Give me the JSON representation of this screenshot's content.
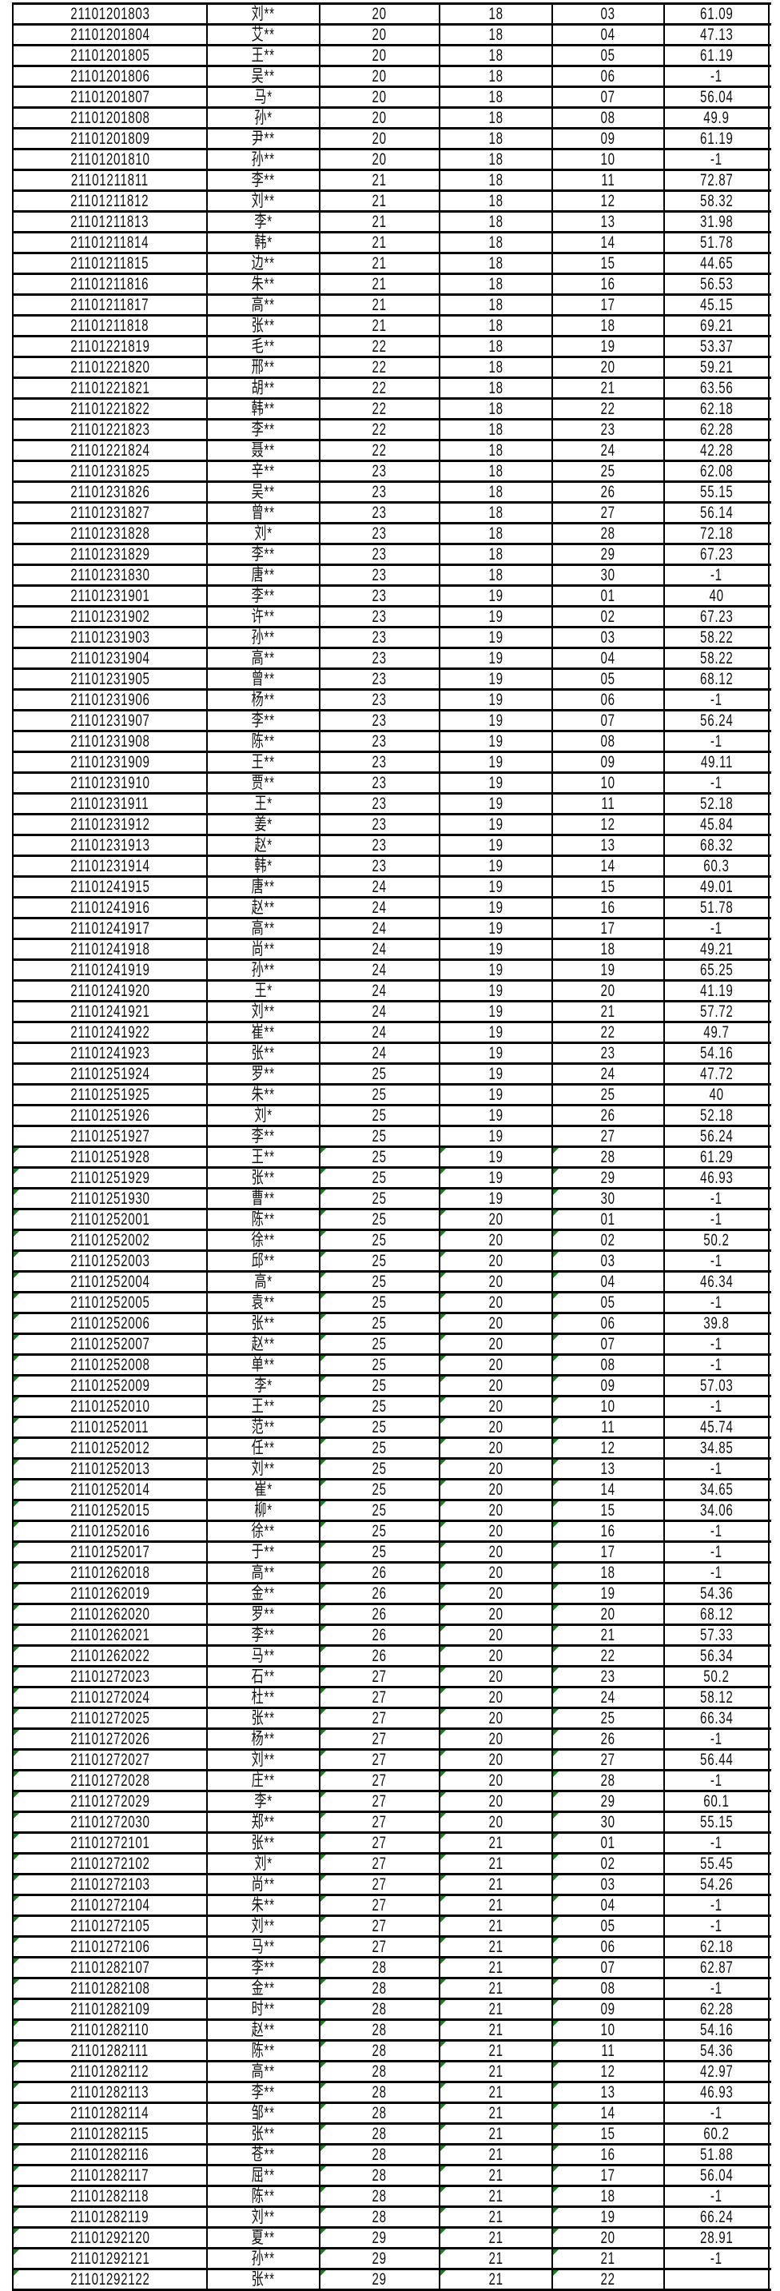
{
  "warning_marker_color": "#1e7b1e",
  "rows": [
    {
      "c": [
        "21101201803",
        "刘**",
        "20",
        "18",
        "03",
        "61.09"
      ]
    },
    {
      "c": [
        "21101201804",
        "艾**",
        "20",
        "18",
        "04",
        "47.13"
      ]
    },
    {
      "c": [
        "21101201805",
        "王**",
        "20",
        "18",
        "05",
        "61.19"
      ]
    },
    {
      "c": [
        "21101201806",
        "吴**",
        "20",
        "18",
        "06",
        "-1"
      ]
    },
    {
      "c": [
        "21101201807",
        "马*",
        "20",
        "18",
        "07",
        "56.04"
      ]
    },
    {
      "c": [
        "21101201808",
        "孙*",
        "20",
        "18",
        "08",
        "49.9"
      ]
    },
    {
      "c": [
        "21101201809",
        "尹**",
        "20",
        "18",
        "09",
        "61.19"
      ]
    },
    {
      "c": [
        "21101201810",
        "孙**",
        "20",
        "18",
        "10",
        "-1"
      ]
    },
    {
      "c": [
        "21101211811",
        "李**",
        "21",
        "18",
        "11",
        "72.87"
      ]
    },
    {
      "c": [
        "21101211812",
        "刘**",
        "21",
        "18",
        "12",
        "58.32"
      ]
    },
    {
      "c": [
        "21101211813",
        "李*",
        "21",
        "18",
        "13",
        "31.98"
      ]
    },
    {
      "c": [
        "21101211814",
        "韩*",
        "21",
        "18",
        "14",
        "51.78"
      ]
    },
    {
      "c": [
        "21101211815",
        "边**",
        "21",
        "18",
        "15",
        "44.65"
      ]
    },
    {
      "c": [
        "21101211816",
        "朱**",
        "21",
        "18",
        "16",
        "56.53"
      ]
    },
    {
      "c": [
        "21101211817",
        "高**",
        "21",
        "18",
        "17",
        "45.15"
      ]
    },
    {
      "c": [
        "21101211818",
        "张**",
        "21",
        "18",
        "18",
        "69.21"
      ]
    },
    {
      "c": [
        "21101221819",
        "毛**",
        "22",
        "18",
        "19",
        "53.37"
      ]
    },
    {
      "c": [
        "21101221820",
        "邢**",
        "22",
        "18",
        "20",
        "59.21"
      ]
    },
    {
      "c": [
        "21101221821",
        "胡**",
        "22",
        "18",
        "21",
        "63.56"
      ]
    },
    {
      "c": [
        "21101221822",
        "韩**",
        "22",
        "18",
        "22",
        "62.18"
      ]
    },
    {
      "c": [
        "21101221823",
        "李**",
        "22",
        "18",
        "23",
        "62.28"
      ]
    },
    {
      "c": [
        "21101221824",
        "聂**",
        "22",
        "18",
        "24",
        "42.28"
      ]
    },
    {
      "c": [
        "21101231825",
        "辛**",
        "23",
        "18",
        "25",
        "62.08"
      ]
    },
    {
      "c": [
        "21101231826",
        "吴**",
        "23",
        "18",
        "26",
        "55.15"
      ]
    },
    {
      "c": [
        "21101231827",
        "曾**",
        "23",
        "18",
        "27",
        "56.14"
      ]
    },
    {
      "c": [
        "21101231828",
        "刘*",
        "23",
        "18",
        "28",
        "72.18"
      ]
    },
    {
      "c": [
        "21101231829",
        "李**",
        "23",
        "18",
        "29",
        "67.23"
      ]
    },
    {
      "c": [
        "21101231830",
        "唐**",
        "23",
        "18",
        "30",
        "-1"
      ]
    },
    {
      "c": [
        "21101231901",
        "李**",
        "23",
        "19",
        "01",
        "40"
      ]
    },
    {
      "c": [
        "21101231902",
        "许**",
        "23",
        "19",
        "02",
        "67.23"
      ]
    },
    {
      "c": [
        "21101231903",
        "孙**",
        "23",
        "19",
        "03",
        "58.22"
      ]
    },
    {
      "c": [
        "21101231904",
        "高**",
        "23",
        "19",
        "04",
        "58.22"
      ]
    },
    {
      "c": [
        "21101231905",
        "曾**",
        "23",
        "19",
        "05",
        "68.12"
      ]
    },
    {
      "c": [
        "21101231906",
        "杨**",
        "23",
        "19",
        "06",
        "-1"
      ]
    },
    {
      "c": [
        "21101231907",
        "李**",
        "23",
        "19",
        "07",
        "56.24"
      ]
    },
    {
      "c": [
        "21101231908",
        "陈**",
        "23",
        "19",
        "08",
        "-1"
      ]
    },
    {
      "c": [
        "21101231909",
        "王**",
        "23",
        "19",
        "09",
        "49.11"
      ]
    },
    {
      "c": [
        "21101231910",
        "贾**",
        "23",
        "19",
        "10",
        "-1"
      ]
    },
    {
      "c": [
        "21101231911",
        "王*",
        "23",
        "19",
        "11",
        "52.18"
      ]
    },
    {
      "c": [
        "21101231912",
        "姜*",
        "23",
        "19",
        "12",
        "45.84"
      ]
    },
    {
      "c": [
        "21101231913",
        "赵*",
        "23",
        "19",
        "13",
        "68.32"
      ]
    },
    {
      "c": [
        "21101231914",
        "韩*",
        "23",
        "19",
        "14",
        "60.3"
      ]
    },
    {
      "c": [
        "21101241915",
        "唐**",
        "24",
        "19",
        "15",
        "49.01"
      ]
    },
    {
      "c": [
        "21101241916",
        "赵**",
        "24",
        "19",
        "16",
        "51.78"
      ]
    },
    {
      "c": [
        "21101241917",
        "高**",
        "24",
        "19",
        "17",
        "-1"
      ]
    },
    {
      "c": [
        "21101241918",
        "尚**",
        "24",
        "19",
        "18",
        "49.21"
      ]
    },
    {
      "c": [
        "21101241919",
        "孙**",
        "24",
        "19",
        "19",
        "65.25"
      ]
    },
    {
      "c": [
        "21101241920",
        "王*",
        "24",
        "19",
        "20",
        "41.19"
      ]
    },
    {
      "c": [
        "21101241921",
        "刘**",
        "24",
        "19",
        "21",
        "57.72"
      ]
    },
    {
      "c": [
        "21101241922",
        "崔**",
        "24",
        "19",
        "22",
        "49.7"
      ]
    },
    {
      "c": [
        "21101241923",
        "张**",
        "24",
        "19",
        "23",
        "54.16"
      ]
    },
    {
      "c": [
        "21101251924",
        "罗**",
        "25",
        "19",
        "24",
        "47.72"
      ]
    },
    {
      "c": [
        "21101251925",
        "朱**",
        "25",
        "19",
        "25",
        "40"
      ]
    },
    {
      "c": [
        "21101251926",
        "刘*",
        "25",
        "19",
        "26",
        "52.18"
      ]
    },
    {
      "c": [
        "21101251927",
        "李**",
        "25",
        "19",
        "27",
        "56.24"
      ]
    },
    {
      "c": [
        "21101251928",
        "王**",
        "25",
        "19",
        "28",
        "61.29"
      ],
      "warn": true
    },
    {
      "c": [
        "21101251929",
        "张**",
        "25",
        "19",
        "29",
        "46.93"
      ],
      "warn": true
    },
    {
      "c": [
        "21101251930",
        "曹**",
        "25",
        "19",
        "30",
        "-1"
      ],
      "warn": true
    },
    {
      "c": [
        "21101252001",
        "陈**",
        "25",
        "20",
        "01",
        "-1"
      ],
      "warn": true
    },
    {
      "c": [
        "21101252002",
        "徐**",
        "25",
        "20",
        "02",
        "50.2"
      ],
      "warn": true
    },
    {
      "c": [
        "21101252003",
        "邱**",
        "25",
        "20",
        "03",
        "-1"
      ],
      "warn": true
    },
    {
      "c": [
        "21101252004",
        "高*",
        "25",
        "20",
        "04",
        "46.34"
      ],
      "warn": true
    },
    {
      "c": [
        "21101252005",
        "袁**",
        "25",
        "20",
        "05",
        "-1"
      ],
      "warn": true
    },
    {
      "c": [
        "21101252006",
        "张**",
        "25",
        "20",
        "06",
        "39.8"
      ],
      "warn": true
    },
    {
      "c": [
        "21101252007",
        "赵**",
        "25",
        "20",
        "07",
        "-1"
      ],
      "warn": true
    },
    {
      "c": [
        "21101252008",
        "单**",
        "25",
        "20",
        "08",
        "-1"
      ],
      "warn": true
    },
    {
      "c": [
        "21101252009",
        "李*",
        "25",
        "20",
        "09",
        "57.03"
      ],
      "warn": true
    },
    {
      "c": [
        "21101252010",
        "王**",
        "25",
        "20",
        "10",
        "-1"
      ],
      "warn": true
    },
    {
      "c": [
        "21101252011",
        "范**",
        "25",
        "20",
        "11",
        "45.74"
      ],
      "warn": true
    },
    {
      "c": [
        "21101252012",
        "任**",
        "25",
        "20",
        "12",
        "34.85"
      ],
      "warn": true
    },
    {
      "c": [
        "21101252013",
        "刘**",
        "25",
        "20",
        "13",
        "-1"
      ],
      "warn": true
    },
    {
      "c": [
        "21101252014",
        "崔*",
        "25",
        "20",
        "14",
        "34.65"
      ],
      "warn": true
    },
    {
      "c": [
        "21101252015",
        "柳*",
        "25",
        "20",
        "15",
        "34.06"
      ],
      "warn": true
    },
    {
      "c": [
        "21101252016",
        "徐**",
        "25",
        "20",
        "16",
        "-1"
      ],
      "warn": true
    },
    {
      "c": [
        "21101252017",
        "于**",
        "25",
        "20",
        "17",
        "-1"
      ],
      "warn": true
    },
    {
      "c": [
        "21101262018",
        "高**",
        "26",
        "20",
        "18",
        "-1"
      ],
      "warn": true
    },
    {
      "c": [
        "21101262019",
        "金**",
        "26",
        "20",
        "19",
        "54.36"
      ],
      "warn": true
    },
    {
      "c": [
        "21101262020",
        "罗**",
        "26",
        "20",
        "20",
        "68.12"
      ],
      "warn": true
    },
    {
      "c": [
        "21101262021",
        "李**",
        "26",
        "20",
        "21",
        "57.33"
      ],
      "warn": true
    },
    {
      "c": [
        "21101262022",
        "马**",
        "26",
        "20",
        "22",
        "56.34"
      ],
      "warn": true
    },
    {
      "c": [
        "21101272023",
        "石**",
        "27",
        "20",
        "23",
        "50.2"
      ],
      "warn": true
    },
    {
      "c": [
        "21101272024",
        "杜**",
        "27",
        "20",
        "24",
        "58.12"
      ],
      "warn": true
    },
    {
      "c": [
        "21101272025",
        "张**",
        "27",
        "20",
        "25",
        "66.34"
      ],
      "warn": true
    },
    {
      "c": [
        "21101272026",
        "杨**",
        "27",
        "20",
        "26",
        "-1"
      ],
      "warn": true
    },
    {
      "c": [
        "21101272027",
        "刘**",
        "27",
        "20",
        "27",
        "56.44"
      ],
      "warn": true
    },
    {
      "c": [
        "21101272028",
        "庄**",
        "27",
        "20",
        "28",
        "-1"
      ],
      "warn": true
    },
    {
      "c": [
        "21101272029",
        "李*",
        "27",
        "20",
        "29",
        "60.1"
      ],
      "warn": true
    },
    {
      "c": [
        "21101272030",
        "郑**",
        "27",
        "20",
        "30",
        "55.15"
      ],
      "warn": true
    },
    {
      "c": [
        "21101272101",
        "张**",
        "27",
        "21",
        "01",
        "-1"
      ],
      "warn": true
    },
    {
      "c": [
        "21101272102",
        "刘*",
        "27",
        "21",
        "02",
        "55.45"
      ],
      "warn": true
    },
    {
      "c": [
        "21101272103",
        "尚**",
        "27",
        "21",
        "03",
        "54.26"
      ],
      "warn": true
    },
    {
      "c": [
        "21101272104",
        "朱**",
        "27",
        "21",
        "04",
        "-1"
      ],
      "warn": true
    },
    {
      "c": [
        "21101272105",
        "刘**",
        "27",
        "21",
        "05",
        "-1"
      ],
      "warn": true
    },
    {
      "c": [
        "21101272106",
        "马**",
        "27",
        "21",
        "06",
        "62.18"
      ],
      "warn": true
    },
    {
      "c": [
        "21101282107",
        "李**",
        "28",
        "21",
        "07",
        "62.87"
      ],
      "warn": true
    },
    {
      "c": [
        "21101282108",
        "金**",
        "28",
        "21",
        "08",
        "-1"
      ],
      "warn": true
    },
    {
      "c": [
        "21101282109",
        "时**",
        "28",
        "21",
        "09",
        "62.28"
      ],
      "warn": true
    },
    {
      "c": [
        "21101282110",
        "赵**",
        "28",
        "21",
        "10",
        "54.16"
      ],
      "warn": true
    },
    {
      "c": [
        "21101282111",
        "陈**",
        "28",
        "21",
        "11",
        "54.36"
      ],
      "warn": true
    },
    {
      "c": [
        "21101282112",
        "高**",
        "28",
        "21",
        "12",
        "42.97"
      ],
      "warn": true
    },
    {
      "c": [
        "21101282113",
        "李**",
        "28",
        "21",
        "13",
        "46.93"
      ],
      "warn": true
    },
    {
      "c": [
        "21101282114",
        "邹**",
        "28",
        "21",
        "14",
        "-1"
      ],
      "warn": true
    },
    {
      "c": [
        "21101282115",
        "张**",
        "28",
        "21",
        "15",
        "60.2"
      ],
      "warn": true
    },
    {
      "c": [
        "21101282116",
        "苍**",
        "28",
        "21",
        "16",
        "51.88"
      ],
      "warn": true
    },
    {
      "c": [
        "21101282117",
        "屈**",
        "28",
        "21",
        "17",
        "56.04"
      ],
      "warn": true
    },
    {
      "c": [
        "21101282118",
        "陈**",
        "28",
        "21",
        "18",
        "-1"
      ],
      "warn": true
    },
    {
      "c": [
        "21101282119",
        "刘**",
        "28",
        "21",
        "19",
        "66.24"
      ],
      "warn": true
    },
    {
      "c": [
        "21101292120",
        "夏**",
        "29",
        "21",
        "20",
        "28.91"
      ],
      "warn": true
    },
    {
      "c": [
        "21101292121",
        "孙**",
        "29",
        "21",
        "21",
        "-1"
      ],
      "warn": true
    },
    {
      "c": [
        "21101292122",
        "张**",
        "29",
        "21",
        "22",
        ""
      ],
      "warn": true
    }
  ]
}
